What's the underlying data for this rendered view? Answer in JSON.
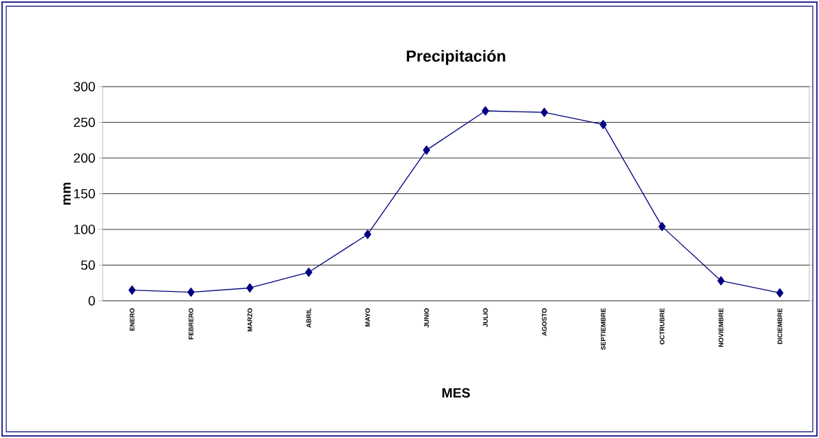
{
  "chart_data": {
    "type": "line",
    "title": "Precipitación",
    "xlabel": "MES",
    "ylabel": "mm",
    "categories": [
      "ENERO",
      "FEBRERO",
      "MARZO",
      "ABRIL",
      "MAYO",
      "JUNIO",
      "JULIO",
      "AGOSTO",
      "SEPTIEMBRE",
      "OCTRUBRE",
      "NOVIEMBRE",
      "DICIEMBRE"
    ],
    "series": [
      {
        "color": "#000080",
        "values": [
          15,
          12,
          18,
          40,
          93,
          211,
          266,
          264,
          247,
          104,
          28,
          11
        ]
      }
    ],
    "ylim": [
      0,
      300
    ],
    "yticks": [
      0,
      50,
      100,
      150,
      200,
      250,
      300
    ],
    "grid": "y",
    "marker": "diamond",
    "line_style": "solid"
  }
}
